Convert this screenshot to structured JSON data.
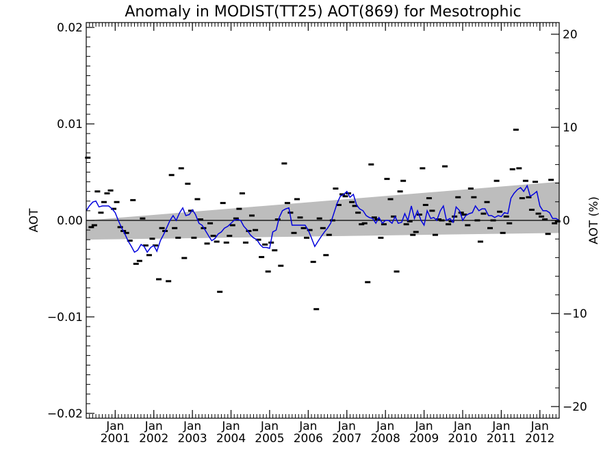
{
  "chart_data": {
    "type": "line",
    "title": "Anomaly in MODIST(TT25) AOT(869) for Mesotrophic",
    "ylabel_left": "AOT",
    "ylabel_right": "AOT (%)",
    "ylim": [
      -0.0205,
      0.0205
    ],
    "ylim_right": [
      -21.25,
      21.25
    ],
    "xlim": [
      2000.25,
      2012.5
    ],
    "y_ticks_left": [
      {
        "v": 0.02,
        "label": "0.02"
      },
      {
        "v": 0.01,
        "label": "0.01"
      },
      {
        "v": 0.0,
        "label": "0.00"
      },
      {
        "v": -0.01,
        "label": "−0.01"
      },
      {
        "v": -0.02,
        "label": "−0.02"
      }
    ],
    "y_ticks_right": [
      {
        "v": 20,
        "label": "20"
      },
      {
        "v": 10,
        "label": "10"
      },
      {
        "v": 0,
        "label": "0"
      },
      {
        "v": -10,
        "label": "−10"
      },
      {
        "v": -20,
        "label": "−20"
      }
    ],
    "x_ticks": [
      {
        "v": 2001.0,
        "month": "Jan",
        "year": "2001"
      },
      {
        "v": 2002.0,
        "month": "Jan",
        "year": "2002"
      },
      {
        "v": 2003.0,
        "month": "Jan",
        "year": "2003"
      },
      {
        "v": 2004.0,
        "month": "Jan",
        "year": "2004"
      },
      {
        "v": 2005.0,
        "month": "Jan",
        "year": "2005"
      },
      {
        "v": 2006.0,
        "month": "Jan",
        "year": "2006"
      },
      {
        "v": 2007.0,
        "month": "Jan",
        "year": "2007"
      },
      {
        "v": 2008.0,
        "month": "Jan",
        "year": "2008"
      },
      {
        "v": 2009.0,
        "month": "Jan",
        "year": "2009"
      },
      {
        "v": 2010.0,
        "month": "Jan",
        "year": "2010"
      },
      {
        "v": 2011.0,
        "month": "Jan",
        "year": "2011"
      },
      {
        "v": 2012.0,
        "month": "Jan",
        "year": "2012"
      }
    ],
    "zero_line": 0,
    "trend_band": {
      "x": [
        2000.25,
        2012.5
      ],
      "upper": [
        0.0,
        0.004
      ],
      "lower": [
        -0.002,
        -0.0013
      ]
    },
    "monthly_anomalies": {
      "x": [
        2000.29,
        2000.38,
        2000.46,
        2000.54,
        2000.63,
        2000.71,
        2000.79,
        2000.88,
        2000.96,
        2001.04,
        2001.13,
        2001.21,
        2001.29,
        2001.38,
        2001.46,
        2001.54,
        2001.63,
        2001.71,
        2001.79,
        2001.88,
        2001.96,
        2002.04,
        2002.13,
        2002.21,
        2002.29,
        2002.38,
        2002.46,
        2002.54,
        2002.63,
        2002.71,
        2002.79,
        2002.88,
        2002.96,
        2003.04,
        2003.13,
        2003.21,
        2003.29,
        2003.38,
        2003.46,
        2003.54,
        2003.63,
        2003.71,
        2003.79,
        2003.88,
        2003.96,
        2004.04,
        2004.13,
        2004.21,
        2004.29,
        2004.38,
        2004.46,
        2004.54,
        2004.63,
        2004.71,
        2004.79,
        2004.88,
        2004.96,
        2005.04,
        2005.13,
        2005.21,
        2005.29,
        2005.38,
        2005.46,
        2005.54,
        2005.63,
        2005.71,
        2005.79,
        2005.88,
        2005.96,
        2006.04,
        2006.13,
        2006.21,
        2006.29,
        2006.38,
        2006.46,
        2006.54,
        2006.63,
        2006.71,
        2006.79,
        2006.88,
        2006.96,
        2007.04,
        2007.13,
        2007.21,
        2007.29,
        2007.38,
        2007.46,
        2007.54,
        2007.63,
        2007.71,
        2007.79,
        2007.88,
        2007.96,
        2008.04,
        2008.13,
        2008.21,
        2008.29,
        2008.38,
        2008.46,
        2008.54,
        2008.63,
        2008.71,
        2008.79,
        2008.88,
        2008.96,
        2009.04,
        2009.13,
        2009.21,
        2009.29,
        2009.38,
        2009.46,
        2009.54,
        2009.63,
        2009.71,
        2009.79,
        2009.88,
        2009.96,
        2010.04,
        2010.13,
        2010.21,
        2010.29,
        2010.38,
        2010.46,
        2010.54,
        2010.63,
        2010.71,
        2010.79,
        2010.88,
        2010.96,
        2011.04,
        2011.13,
        2011.21,
        2011.29,
        2011.38,
        2011.46,
        2011.54,
        2011.63,
        2011.71,
        2011.79,
        2011.88,
        2011.96,
        2012.04,
        2012.13,
        2012.21,
        2012.29,
        2012.38,
        2012.46
      ],
      "y": [
        0.0065,
        -0.0007,
        -0.0005,
        0.003,
        0.0008,
        0.0019,
        0.0028,
        0.0031,
        0.0012,
        0.0019,
        -0.0007,
        -0.0011,
        -0.0013,
        -0.0021,
        0.0021,
        -0.0045,
        -0.0042,
        0.0002,
        -0.0026,
        -0.0036,
        -0.0019,
        -0.0026,
        -0.0061,
        -0.0008,
        -0.0011,
        -0.0063,
        0.0047,
        -0.0008,
        -0.0018,
        0.0054,
        -0.0039,
        0.0038,
        0.001,
        -0.0018,
        0.0022,
        0.0001,
        -0.0008,
        -0.0024,
        -0.0003,
        -0.0016,
        -0.0022,
        -0.0074,
        0.0018,
        -0.0023,
        -0.0016,
        -0.0005,
        0.0002,
        0.0012,
        0.0028,
        -0.0023,
        -0.0011,
        0.0005,
        -0.001,
        -0.002,
        -0.0038,
        -0.0025,
        -0.0053,
        -0.0023,
        -0.0031,
        0.0001,
        -0.0047,
        0.0059,
        0.0018,
        0.0008,
        -0.0013,
        0.0022,
        0.0003,
        -0.0008,
        -0.0018,
        -0.001,
        -0.0043,
        -0.0092,
        0.0002,
        -0.0008,
        -0.0036,
        -0.0015,
        0.0,
        0.0033,
        0.0016,
        0.0027,
        0.0025,
        0.0028,
        0.0019,
        0.0015,
        0.0008,
        -0.0004,
        -0.0003,
        -0.0064,
        0.0058,
        0.0003,
        0.0001,
        -0.0018,
        -0.0004,
        0.0043,
        0.0022,
        0.0004,
        -0.0053,
        0.003,
        0.0041,
        -0.0004,
        -0.0001,
        -0.0015,
        -0.0012,
        0.0006,
        0.0054,
        0.0016,
        0.0023,
        0.001,
        -0.0015,
        0.0001,
        0.0,
        0.0056,
        -0.0004,
        -0.0001,
        0.0004,
        0.0024,
        0.0008,
        0.0006,
        -0.0005,
        0.0033,
        0.0024,
        0.0,
        -0.0022,
        0.0007,
        0.0019,
        -0.0008,
        0.0,
        0.0041,
        0.0009,
        -0.0013,
        0.0004,
        -0.0003,
        0.0053,
        0.0094,
        0.0054,
        0.0023,
        0.0041,
        0.0024,
        0.0011,
        0.004,
        0.0007,
        0.0004,
        0.0001,
        -0.0014,
        0.0042,
        -0.0003,
        -0.0001
      ]
    },
    "smoothed_series": {
      "name": "",
      "color": "#0000dd",
      "x": [
        2000.25,
        2000.33,
        2000.42,
        2000.5,
        2000.58,
        2000.67,
        2000.75,
        2000.83,
        2000.92,
        2001.0,
        2001.08,
        2001.17,
        2001.25,
        2001.33,
        2001.42,
        2001.5,
        2001.58,
        2001.67,
        2001.75,
        2001.83,
        2001.92,
        2002.0,
        2002.08,
        2002.17,
        2002.25,
        2002.33,
        2002.42,
        2002.5,
        2002.58,
        2002.67,
        2002.75,
        2002.83,
        2002.92,
        2003.0,
        2003.08,
        2003.17,
        2003.25,
        2003.33,
        2003.42,
        2003.5,
        2003.58,
        2003.67,
        2003.75,
        2003.83,
        2003.92,
        2004.0,
        2004.08,
        2004.17,
        2004.25,
        2004.33,
        2004.42,
        2004.5,
        2004.58,
        2004.67,
        2004.75,
        2004.83,
        2004.92,
        2005.0,
        2005.08,
        2005.17,
        2005.25,
        2005.33,
        2005.42,
        2005.5,
        2005.58,
        2005.67,
        2005.75,
        2005.83,
        2005.92,
        2006.0,
        2006.08,
        2006.17,
        2006.25,
        2006.33,
        2006.42,
        2006.5,
        2006.58,
        2006.67,
        2006.75,
        2006.83,
        2006.92,
        2007.0,
        2007.08,
        2007.17,
        2007.25,
        2007.33,
        2007.42,
        2007.5,
        2007.58,
        2007.67,
        2007.75,
        2007.83,
        2007.92,
        2008.0,
        2008.08,
        2008.17,
        2008.25,
        2008.33,
        2008.42,
        2008.5,
        2008.58,
        2008.67,
        2008.75,
        2008.83,
        2008.92,
        2009.0,
        2009.08,
        2009.17,
        2009.25,
        2009.33,
        2009.42,
        2009.5,
        2009.58,
        2009.67,
        2009.75,
        2009.83,
        2009.92,
        2010.0,
        2010.08,
        2010.17,
        2010.25,
        2010.33,
        2010.42,
        2010.5,
        2010.58,
        2010.67,
        2010.75,
        2010.83,
        2010.92,
        2011.0,
        2011.08,
        2011.17,
        2011.25,
        2011.33,
        2011.42,
        2011.5,
        2011.58,
        2011.67,
        2011.75,
        2011.83,
        2011.92,
        2012.0,
        2012.08,
        2012.17,
        2012.25,
        2012.33,
        2012.42,
        2012.5
      ],
      "y": [
        0.001,
        0.0015,
        0.0019,
        0.002,
        0.0014,
        0.0015,
        0.0015,
        0.0015,
        0.0012,
        0.0008,
        0.0,
        -0.0008,
        -0.0014,
        -0.0021,
        -0.0027,
        -0.0033,
        -0.0031,
        -0.0025,
        -0.0027,
        -0.0033,
        -0.0028,
        -0.0026,
        -0.0032,
        -0.0021,
        -0.0015,
        -0.0008,
        0.0,
        0.0005,
        0.0,
        0.0008,
        0.0013,
        0.0005,
        0.0006,
        0.0011,
        0.0006,
        -0.0003,
        -0.0005,
        -0.001,
        -0.0016,
        -0.0021,
        -0.0019,
        -0.0014,
        -0.0012,
        -0.0008,
        -0.0006,
        -0.0003,
        0.0,
        0.0001,
        0.0,
        -0.0006,
        -0.001,
        -0.0015,
        -0.0018,
        -0.002,
        -0.0025,
        -0.0028,
        -0.0028,
        -0.0029,
        -0.0012,
        -0.001,
        0.0003,
        0.001,
        0.0012,
        0.0013,
        -0.0005,
        -0.0005,
        -0.0005,
        -0.0005,
        -0.0005,
        -0.001,
        -0.0018,
        -0.0027,
        -0.0022,
        -0.0017,
        -0.0012,
        -0.0008,
        -0.0003,
        0.0008,
        0.0018,
        0.0025,
        0.0027,
        0.003,
        0.0024,
        0.0027,
        0.0016,
        0.0012,
        0.001,
        0.0005,
        0.0003,
        0.0002,
        -0.0003,
        0.0003,
        -0.0003,
        0.0,
        0.0,
        -0.0003,
        0.0004,
        -0.0003,
        -0.0002,
        0.0007,
        0.0,
        0.0015,
        0.0002,
        0.001,
        0.0,
        -0.0005,
        0.001,
        0.0002,
        0.0003,
        0.0,
        0.001,
        0.0015,
        0.0,
        0.0002,
        -0.0002,
        0.0014,
        0.001,
        0.0,
        0.0005,
        0.0007,
        0.0008,
        0.0015,
        0.001,
        0.0012,
        0.0012,
        0.0005,
        0.0005,
        0.0003,
        0.0005,
        0.0004,
        0.0008,
        0.0007,
        0.0023,
        0.0028,
        0.0032,
        0.0034,
        0.003,
        0.0036,
        0.0025,
        0.0027,
        0.003,
        0.0015,
        0.001,
        0.001,
        0.0008,
        0.0002,
        0.0002,
        0.0
      ]
    }
  }
}
